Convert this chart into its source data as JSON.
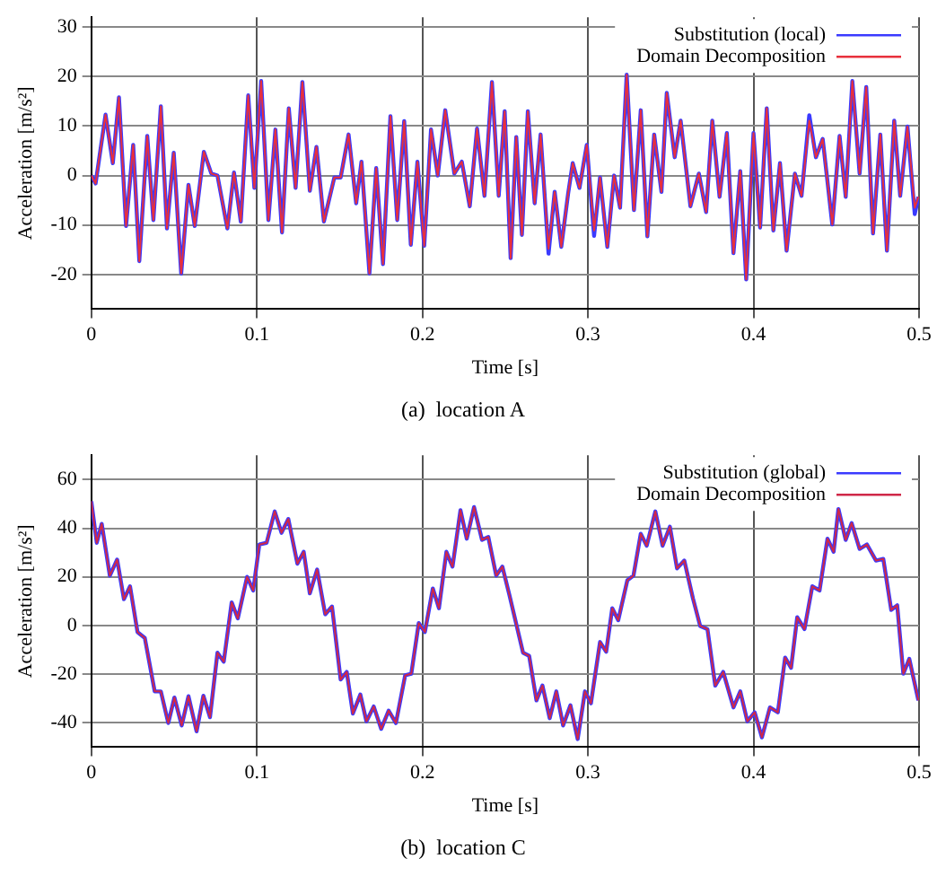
{
  "chart_data": [
    {
      "type": "line",
      "title": "(a)  location A",
      "xlabel": "Time [s]",
      "ylabel": "Acceleration [m/s²]",
      "xlim": [
        0,
        0.5
      ],
      "xticks": [
        0,
        0.1,
        0.2,
        0.3,
        0.4,
        0.5
      ],
      "ylim": [
        -27,
        32
      ],
      "yticks": [
        -20,
        -10,
        0,
        10,
        20,
        30
      ],
      "grid": true,
      "legend": "top right",
      "x": [
        0,
        0.0026,
        0.0086,
        0.013,
        0.0167,
        0.021,
        0.0253,
        0.029,
        0.0338,
        0.0375,
        0.042,
        0.0457,
        0.0498,
        0.0543,
        0.0587,
        0.0625,
        0.068,
        0.0725,
        0.0762,
        0.0822,
        0.0862,
        0.0903,
        0.0948,
        0.0985,
        0.1026,
        0.107,
        0.1112,
        0.1152,
        0.1193,
        0.1234,
        0.1275,
        0.132,
        0.136,
        0.1405,
        0.1468,
        0.1506,
        0.1554,
        0.16,
        0.1632,
        0.168,
        0.1721,
        0.1762,
        0.1807,
        0.1848,
        0.189,
        0.193,
        0.197,
        0.2011,
        0.2052,
        0.2093,
        0.2138,
        0.2193,
        0.2238,
        0.2286,
        0.233,
        0.2375,
        0.242,
        0.2461,
        0.2497,
        0.2533,
        0.2567,
        0.2601,
        0.2637,
        0.2678,
        0.2714,
        0.2762,
        0.2799,
        0.2839,
        0.288,
        0.2908,
        0.2949,
        0.2993,
        0.3037,
        0.3073,
        0.3117,
        0.3158,
        0.3194,
        0.3234,
        0.3278,
        0.3319,
        0.3359,
        0.34,
        0.3444,
        0.3476,
        0.3524,
        0.356,
        0.3619,
        0.367,
        0.3714,
        0.3751,
        0.3795,
        0.3839,
        0.3879,
        0.392,
        0.3956,
        0.4,
        0.404,
        0.408,
        0.412,
        0.416,
        0.42,
        0.425,
        0.429,
        0.4337,
        0.4377,
        0.4418,
        0.4476,
        0.452,
        0.4557,
        0.4597,
        0.4641,
        0.4681,
        0.4722,
        0.4766,
        0.4806,
        0.485,
        0.4886,
        0.493,
        0.4974,
        0.4996
      ],
      "series": [
        {
          "name": "Substitution (local)",
          "color": "#3a3aff",
          "values": [
            0,
            -1.6,
            12.3,
            2.5,
            15.8,
            -10.2,
            6.2,
            -17.3,
            8,
            -9,
            14,
            -10.7,
            4.6,
            -19.8,
            -1.9,
            -10.2,
            4.8,
            0.4,
            0,
            -10.7,
            0.6,
            -9.3,
            16.2,
            -2.5,
            19.1,
            -9,
            9.3,
            -11.5,
            13.6,
            -2.5,
            18.9,
            -3.1,
            5.8,
            -9.3,
            -0.4,
            -0.4,
            8.3,
            -5.6,
            2.8,
            -19.8,
            1.5,
            -17.9,
            12,
            -9,
            11,
            -14,
            2.8,
            -14.2,
            9.3,
            0,
            13.2,
            0.4,
            2.8,
            -6.2,
            9.5,
            -4.1,
            18.9,
            -4.1,
            13,
            -16.7,
            7.8,
            -12,
            13,
            -5.6,
            8.3,
            -15.8,
            -3.3,
            -14.4,
            -3.7,
            2.5,
            -2.5,
            6.2,
            -12.2,
            -0.4,
            -14.4,
            0,
            -6.5,
            20.4,
            -7,
            13.2,
            -12.3,
            8.3,
            -3.3,
            16.7,
            3.7,
            11.1,
            -6.2,
            0.4,
            -7.4,
            11.1,
            -4.3,
            8.6,
            -15.7,
            0.9,
            -21,
            8.6,
            -10.5,
            13.6,
            -11.1,
            2.5,
            -15.2,
            0.4,
            -4.1,
            12.2,
            3.7,
            7.4,
            -9.9,
            8,
            -4.3,
            19.1,
            0.4,
            17.9,
            -11.7,
            8.3,
            -15.2,
            11.1,
            -4.1,
            9.9,
            -7.8,
            -4.3
          ]
        },
        {
          "name": "Domain Decomposition",
          "color": "#e8303c",
          "values": [
            0,
            -1.6,
            12.3,
            2.5,
            15.8,
            -10.2,
            6.2,
            -17.3,
            8,
            -9,
            14,
            -10.7,
            4.6,
            -19.8,
            -1.9,
            -10.2,
            4.8,
            0.4,
            0,
            -10.7,
            0.6,
            -9.3,
            16.2,
            -2.5,
            19.1,
            -9,
            9.3,
            -11.5,
            13.6,
            -2.5,
            18.9,
            -3.1,
            5.8,
            -9.3,
            -0.4,
            -0.4,
            8.3,
            -5.6,
            2.8,
            -19.8,
            1.5,
            -17.9,
            12,
            -9,
            11,
            -14,
            2.8,
            -14.2,
            9.3,
            0,
            13.2,
            0.4,
            2.8,
            -6.2,
            9.5,
            -4.1,
            18.9,
            -4.1,
            13,
            -16.7,
            7.8,
            -12,
            13,
            -5.6,
            8.3,
            -14.8,
            -3.3,
            -14.4,
            -3.7,
            2.5,
            -2.5,
            6.2,
            -11.1,
            -0.4,
            -14.4,
            0,
            -6.5,
            20.4,
            -7,
            13.2,
            -12.3,
            8.3,
            -3.3,
            16.7,
            3.7,
            11.1,
            -6.2,
            0.4,
            -7.4,
            11.1,
            -4.3,
            8.6,
            -15.7,
            0.9,
            -21,
            8.6,
            -10.5,
            13.6,
            -11.1,
            2.5,
            -15.2,
            0.4,
            -4.1,
            11.1,
            3.7,
            7.4,
            -9.9,
            8,
            -4.3,
            19.1,
            0.4,
            17.9,
            -11.7,
            8.3,
            -15.2,
            11.1,
            -4.1,
            9.9,
            -6.5,
            -4.3
          ]
        }
      ]
    },
    {
      "type": "line",
      "title": "(b)  location C",
      "xlabel": "Time [s]",
      "ylabel": "Acceleration [m/s²]",
      "xlim": [
        0,
        0.5
      ],
      "xticks": [
        0,
        0.1,
        0.2,
        0.3,
        0.4,
        0.5
      ],
      "ylim": [
        -50,
        70
      ],
      "yticks": [
        -40,
        -20,
        0,
        20,
        40,
        60
      ],
      "grid": true,
      "legend": "top right",
      "x": [
        0,
        0.0033,
        0.0063,
        0.0112,
        0.0156,
        0.0197,
        0.0234,
        0.0279,
        0.0323,
        0.0383,
        0.042,
        0.0465,
        0.0502,
        0.0546,
        0.0587,
        0.0636,
        0.0677,
        0.0717,
        0.0762,
        0.08,
        0.0848,
        0.0885,
        0.0941,
        0.0978,
        0.1015,
        0.1059,
        0.1108,
        0.1149,
        0.119,
        0.1245,
        0.1283,
        0.132,
        0.1364,
        0.1413,
        0.1454,
        0.1506,
        0.1543,
        0.158,
        0.1625,
        0.1662,
        0.1706,
        0.1751,
        0.1796,
        0.184,
        0.1896,
        0.1933,
        0.1978,
        0.2015,
        0.2063,
        0.21,
        0.2145,
        0.2182,
        0.223,
        0.2268,
        0.2312,
        0.236,
        0.2398,
        0.2446,
        0.2483,
        0.2525,
        0.2608,
        0.2645,
        0.2689,
        0.2725,
        0.2769,
        0.2809,
        0.285,
        0.2894,
        0.2938,
        0.2982,
        0.3018,
        0.3073,
        0.311,
        0.3147,
        0.3183,
        0.3238,
        0.3275,
        0.3319,
        0.3355,
        0.3407,
        0.3451,
        0.3495,
        0.3538,
        0.3582,
        0.3634,
        0.3678,
        0.3722,
        0.3769,
        0.3817,
        0.3879,
        0.392,
        0.3963,
        0.4007,
        0.4051,
        0.4099,
        0.4147,
        0.4191,
        0.4227,
        0.4264,
        0.4308,
        0.4355,
        0.4399,
        0.4447,
        0.4484,
        0.4513,
        0.4557,
        0.4593,
        0.4641,
        0.4685,
        0.474,
        0.4784,
        0.4832,
        0.4868,
        0.4905,
        0.4941,
        0.4996
      ],
      "series": [
        {
          "name": "Substitution (global)",
          "color": "#3a3aff",
          "values": [
            51.1,
            34,
            41.8,
            20.5,
            27.1,
            10.8,
            16.1,
            -2.7,
            -5.1,
            -27.1,
            -27.1,
            -40.1,
            -29.6,
            -41.1,
            -29.1,
            -43.5,
            -28.9,
            -37.7,
            -11.2,
            -14.9,
            9.5,
            2.9,
            20,
            14.4,
            33.3,
            34,
            46.9,
            38.1,
            43.8,
            25.4,
            30.3,
            13.2,
            23,
            4.6,
            7.8,
            -22.2,
            -19.1,
            -36.2,
            -28.4,
            -39.4,
            -33.3,
            -42.5,
            -35,
            -40.1,
            -20.5,
            -19.8,
            1,
            -2.7,
            15.2,
            7.1,
            30.3,
            24.2,
            47.4,
            35.7,
            48.7,
            35.2,
            36.4,
            20.5,
            24.2,
            12.7,
            -11.2,
            -12.5,
            -30.8,
            -24.7,
            -38.1,
            -27.1,
            -41.1,
            -32.8,
            -46.7,
            -27.1,
            -32,
            -6.8,
            -10.8,
            7.1,
            2.2,
            18.6,
            20.5,
            37.7,
            32.8,
            46.9,
            32.8,
            40.6,
            23.5,
            26.7,
            11.2,
            -0.2,
            -1.5,
            -24.7,
            -19.1,
            -33.7,
            -27.1,
            -39.4,
            -35.7,
            -46,
            -33.7,
            -35.7,
            -13.2,
            -17.4,
            3.4,
            -1.5,
            16.1,
            14.4,
            35.7,
            30.3,
            47.9,
            35.2,
            42.1,
            31.5,
            33.3,
            26.7,
            27.4,
            6.4,
            8.3,
            -19.8,
            -13.7,
            -30.8
          ]
        },
        {
          "name": "Domain Decomposition",
          "color": "#d02848",
          "values": [
            51.1,
            34,
            41.8,
            20.5,
            27.1,
            10.8,
            16.1,
            -2.7,
            -5.1,
            -27.1,
            -27.1,
            -40.1,
            -29.6,
            -41.1,
            -29.1,
            -43.5,
            -28.9,
            -37.7,
            -11.2,
            -14.9,
            9.5,
            2.9,
            20,
            14.4,
            33.3,
            34,
            46.9,
            38.1,
            43.8,
            25.4,
            30.3,
            13.2,
            23,
            4.6,
            7.8,
            -22.2,
            -19.1,
            -36.2,
            -28.4,
            -39.4,
            -33.3,
            -42.5,
            -35,
            -40.1,
            -20.5,
            -19.8,
            1,
            -2.7,
            15.2,
            7.1,
            30.3,
            24.2,
            47.4,
            35.7,
            48.7,
            35.2,
            36.4,
            20.5,
            24.2,
            12.7,
            -11.2,
            -12.5,
            -30.8,
            -24.7,
            -38.1,
            -27.1,
            -41.1,
            -32.8,
            -46.7,
            -27.1,
            -32,
            -6.8,
            -10.8,
            7.1,
            2.2,
            18.6,
            20.5,
            37.7,
            32.8,
            46.9,
            32.8,
            40.6,
            23.5,
            26.7,
            11.2,
            -0.2,
            -1.5,
            -24.7,
            -19.1,
            -33.7,
            -27.1,
            -39.4,
            -35.7,
            -46,
            -33.7,
            -35.7,
            -13.2,
            -17.4,
            3.4,
            -1.5,
            16.1,
            14.4,
            35.7,
            30.3,
            47.9,
            35.2,
            42.1,
            31.5,
            33.3,
            26.7,
            27.4,
            6.4,
            8.3,
            -19.8,
            -13.7,
            -30.8
          ]
        }
      ]
    }
  ]
}
